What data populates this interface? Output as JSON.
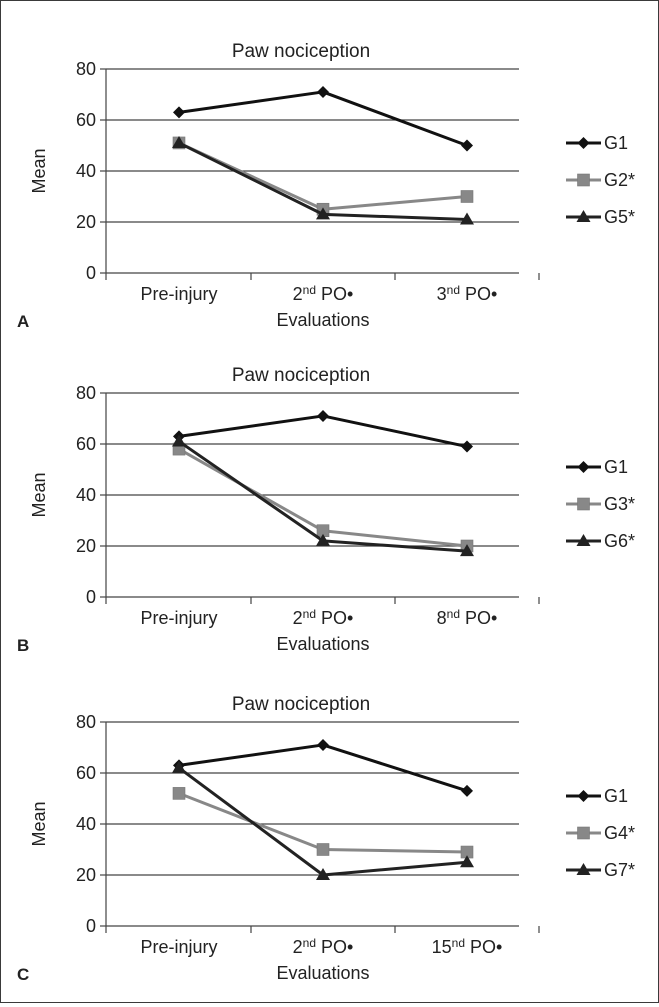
{
  "figure": {
    "panels": [
      "A",
      "B",
      "C"
    ]
  },
  "chart_data": [
    {
      "type": "line",
      "title": "Paw nociception",
      "xlabel": "Evaluations",
      "ylabel": "Mean",
      "categories": [
        {
          "base": "Pre-injury",
          "sup": "",
          "rest": ""
        },
        {
          "base": "2",
          "sup": "nd",
          "rest": " PO•"
        },
        {
          "base": "3",
          "sup": "nd",
          "rest": " PO•"
        }
      ],
      "ylim": [
        0,
        80
      ],
      "yticks": [
        "0",
        "20",
        "40",
        "60",
        "80"
      ],
      "grid": true,
      "legend": "right",
      "series": [
        {
          "name": "G1",
          "values": [
            63,
            71,
            50
          ],
          "color": "#111111",
          "marker": "diamond"
        },
        {
          "name": "G2*",
          "values": [
            51,
            25,
            30
          ],
          "color": "#888888",
          "marker": "square"
        },
        {
          "name": "G5*",
          "values": [
            51,
            23,
            21
          ],
          "color": "#222222",
          "marker": "triangle"
        }
      ]
    },
    {
      "type": "line",
      "title": "Paw nociception",
      "xlabel": "Evaluations",
      "ylabel": "Mean",
      "categories": [
        {
          "base": "Pre-injury",
          "sup": "",
          "rest": ""
        },
        {
          "base": "2",
          "sup": "nd",
          "rest": " PO•"
        },
        {
          "base": "8",
          "sup": "nd",
          "rest": " PO•"
        }
      ],
      "ylim": [
        0,
        80
      ],
      "yticks": [
        "0",
        "20",
        "40",
        "60",
        "80"
      ],
      "grid": true,
      "legend": "right",
      "series": [
        {
          "name": "G1",
          "values": [
            63,
            71,
            59
          ],
          "color": "#111111",
          "marker": "diamond"
        },
        {
          "name": "G3*",
          "values": [
            58,
            26,
            20
          ],
          "color": "#888888",
          "marker": "square"
        },
        {
          "name": "G6*",
          "values": [
            61,
            22,
            18
          ],
          "color": "#222222",
          "marker": "triangle"
        }
      ]
    },
    {
      "type": "line",
      "title": "Paw nociception",
      "xlabel": "Evaluations",
      "ylabel": "Mean",
      "categories": [
        {
          "base": "Pre-injury",
          "sup": "",
          "rest": ""
        },
        {
          "base": "2",
          "sup": "nd",
          "rest": " PO•"
        },
        {
          "base": "15",
          "sup": "nd",
          "rest": " PO•"
        }
      ],
      "ylim": [
        0,
        80
      ],
      "yticks": [
        "0",
        "20",
        "40",
        "60",
        "80"
      ],
      "grid": true,
      "legend": "right",
      "series": [
        {
          "name": "G1",
          "values": [
            63,
            71,
            53
          ],
          "color": "#111111",
          "marker": "diamond"
        },
        {
          "name": "G4*",
          "values": [
            52,
            30,
            29
          ],
          "color": "#888888",
          "marker": "square"
        },
        {
          "name": "G7*",
          "values": [
            62,
            20,
            25
          ],
          "color": "#222222",
          "marker": "triangle"
        }
      ]
    }
  ]
}
